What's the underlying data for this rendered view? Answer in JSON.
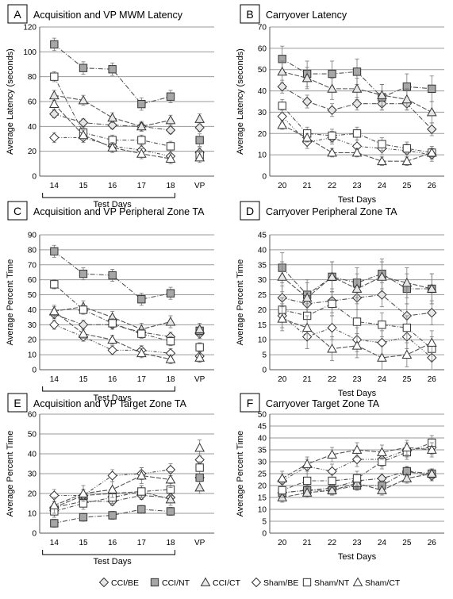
{
  "legend": {
    "items": [
      {
        "name": "CCI/BE",
        "marker": "diamond",
        "fill": "#e6e6e6"
      },
      {
        "name": "CCI/NT",
        "marker": "square",
        "fill": "#a6a6a6"
      },
      {
        "name": "CCI/CT",
        "marker": "triangle",
        "fill": "#e6e6e6"
      },
      {
        "name": "Sham/BE",
        "marker": "diamond",
        "fill": "#ffffff"
      },
      {
        "name": "Sham/NT",
        "marker": "square",
        "fill": "#ffffff"
      },
      {
        "name": "Sham/CT",
        "marker": "triangle",
        "fill": "#ffffff"
      }
    ]
  },
  "chart_data": [
    {
      "panel": "A",
      "type": "line",
      "title": "Acquisition and VP MWM Latency",
      "ylabel": "Average Latency (seconds)",
      "xlabel": "Test Days",
      "categories": [
        "14",
        "15",
        "16",
        "17",
        "18",
        "VP"
      ],
      "ylim": [
        0,
        120
      ],
      "yticks": [
        0,
        20,
        40,
        60,
        80,
        100,
        120
      ],
      "bracket": [
        0,
        4
      ],
      "series": [
        {
          "name": "CCI/BE",
          "values": [
            50,
            43,
            41,
            40,
            37,
            39
          ],
          "err": 3
        },
        {
          "name": "CCI/NT",
          "values": [
            106,
            87,
            86,
            58,
            64,
            29
          ],
          "err": 5
        },
        {
          "name": "CCI/CT",
          "values": [
            65,
            61,
            47,
            40,
            45,
            46
          ],
          "err": 4
        },
        {
          "name": "Sham/BE",
          "values": [
            31,
            31,
            24,
            21,
            16,
            19
          ],
          "err": 4
        },
        {
          "name": "Sham/NT",
          "values": [
            80,
            35,
            29,
            29,
            24,
            17
          ],
          "err": 4
        },
        {
          "name": "Sham/CT",
          "values": [
            58,
            33,
            23,
            18,
            14,
            15
          ],
          "err": 4
        }
      ]
    },
    {
      "panel": "B",
      "type": "line",
      "title": "Carryover Latency",
      "ylabel": "Average Latency (seconds)",
      "xlabel": "Test Days",
      "categories": [
        "20",
        "21",
        "22",
        "23",
        "24",
        "25",
        "26"
      ],
      "ylim": [
        0,
        70
      ],
      "yticks": [
        0,
        10,
        20,
        30,
        40,
        50,
        60,
        70
      ],
      "series": [
        {
          "name": "CCI/BE",
          "values": [
            42,
            35,
            31,
            34,
            34,
            34,
            22
          ],
          "err": 3
        },
        {
          "name": "CCI/NT",
          "values": [
            55,
            48,
            48,
            49,
            37,
            42,
            41
          ],
          "err": 6
        },
        {
          "name": "CCI/CT",
          "values": [
            49,
            46,
            41,
            41,
            38,
            36,
            30
          ],
          "err": 5
        },
        {
          "name": "Sham/BE",
          "values": [
            28,
            16,
            18,
            14,
            13,
            12,
            10
          ],
          "err": 3
        },
        {
          "name": "Sham/NT",
          "values": [
            33,
            20,
            19,
            20,
            15,
            13,
            11
          ],
          "err": 3
        },
        {
          "name": "Sham/CT",
          "values": [
            24,
            18,
            11,
            11,
            7,
            7,
            11
          ],
          "err": 2
        }
      ]
    },
    {
      "panel": "C",
      "type": "line",
      "title": "Acquisition and VP Peripheral Zone TA",
      "ylabel": "Average Percent Time",
      "xlabel": "Test Days",
      "categories": [
        "14",
        "15",
        "16",
        "17",
        "18",
        "VP"
      ],
      "ylim": [
        0,
        90
      ],
      "yticks": [
        0,
        10,
        20,
        30,
        40,
        50,
        60,
        70,
        80,
        90
      ],
      "bracket": [
        0,
        4
      ],
      "series": [
        {
          "name": "CCI/BE",
          "values": [
            37,
            30,
            30,
            25,
            22,
            24
          ],
          "err": 3
        },
        {
          "name": "CCI/NT",
          "values": [
            79,
            64,
            63,
            47,
            51,
            26
          ],
          "err": 4
        },
        {
          "name": "CCI/CT",
          "values": [
            39,
            42,
            35,
            27,
            32,
            27
          ],
          "err": 4
        },
        {
          "name": "Sham/BE",
          "values": [
            30,
            22,
            13,
            13,
            11,
            9
          ],
          "err": 3
        },
        {
          "name": "Sham/NT",
          "values": [
            57,
            40,
            31,
            24,
            19,
            15
          ],
          "err": 3
        },
        {
          "name": "Sham/CT",
          "values": [
            39,
            24,
            20,
            11,
            7,
            8
          ],
          "err": 3
        }
      ]
    },
    {
      "panel": "D",
      "type": "line",
      "title": "Carryover Peripheral Zone TA",
      "ylabel": "Average Percent Time",
      "xlabel": "Test Days",
      "categories": [
        "20",
        "21",
        "22",
        "23",
        "24",
        "25",
        "26"
      ],
      "ylim": [
        0,
        45
      ],
      "yticks": [
        0,
        5,
        10,
        15,
        20,
        25,
        30,
        35,
        40,
        45
      ],
      "series": [
        {
          "name": "CCI/BE",
          "values": [
            24,
            22,
            23,
            24,
            25,
            18,
            19
          ],
          "err": 4
        },
        {
          "name": "CCI/NT",
          "values": [
            34,
            25,
            31,
            29,
            32,
            27,
            27
          ],
          "err": 5
        },
        {
          "name": "CCI/CT",
          "values": [
            31,
            24,
            31,
            27,
            31,
            29,
            27
          ],
          "err": 5
        },
        {
          "name": "Sham/BE",
          "values": [
            18,
            11,
            14,
            10,
            9,
            11,
            4
          ],
          "err": 4
        },
        {
          "name": "Sham/NT",
          "values": [
            20,
            18,
            22,
            16,
            15,
            14,
            7
          ],
          "err": 4
        },
        {
          "name": "Sham/CT",
          "values": [
            17,
            14,
            7,
            8,
            4,
            5,
            9
          ],
          "err": 4
        }
      ]
    },
    {
      "panel": "E",
      "type": "line",
      "title": "Acquisition and VP Target Zone TA",
      "ylabel": "Average Percent Time",
      "xlabel": "Test Days",
      "categories": [
        "14",
        "15",
        "16",
        "17",
        "18",
        "VP"
      ],
      "ylim": [
        0,
        60
      ],
      "yticks": [
        0,
        10,
        20,
        30,
        40,
        50,
        60
      ],
      "bracket": [
        0,
        4
      ],
      "series": [
        {
          "name": "CCI/BE",
          "values": [
            13,
            16,
            16,
            19,
            18,
            28
          ],
          "err": 2
        },
        {
          "name": "CCI/NT",
          "values": [
            5,
            8,
            9,
            12,
            11,
            28
          ],
          "err": 2
        },
        {
          "name": "CCI/CT",
          "values": [
            13,
            19,
            20,
            21,
            17,
            23
          ],
          "err": 3
        },
        {
          "name": "Sham/BE",
          "values": [
            19,
            19,
            29,
            30,
            32,
            37
          ],
          "err": 3
        },
        {
          "name": "Sham/NT",
          "values": [
            11,
            15,
            18,
            21,
            22,
            33
          ],
          "err": 3
        },
        {
          "name": "Sham/CT",
          "values": [
            14,
            20,
            22,
            29,
            27,
            43
          ],
          "err": 4
        }
      ]
    },
    {
      "panel": "F",
      "type": "line",
      "title": "Carryover Target Zone TA",
      "ylabel": "Average Percent Time",
      "xlabel": "Test Days",
      "categories": [
        "20",
        "21",
        "22",
        "23",
        "24",
        "25",
        "26"
      ],
      "ylim": [
        0,
        50
      ],
      "yticks": [
        0,
        5,
        10,
        15,
        20,
        25,
        30,
        35,
        40,
        45,
        50
      ],
      "series": [
        {
          "name": "CCI/BE",
          "values": [
            17,
            18,
            19,
            22,
            23,
            26,
            24
          ],
          "err": 2
        },
        {
          "name": "CCI/NT",
          "values": [
            17,
            18,
            18,
            20,
            20,
            26,
            25
          ],
          "err": 2
        },
        {
          "name": "CCI/CT",
          "values": [
            15,
            17,
            18,
            21,
            18,
            23,
            25
          ],
          "err": 2
        },
        {
          "name": "Sham/BE",
          "values": [
            22,
            28,
            26,
            31,
            31,
            35,
            36
          ],
          "err": 3
        },
        {
          "name": "Sham/NT",
          "values": [
            18,
            22,
            22,
            23,
            30,
            34,
            38
          ],
          "err": 3
        },
        {
          "name": "Sham/CT",
          "values": [
            23,
            29,
            33,
            35,
            34,
            36,
            35
          ],
          "err": 3
        }
      ]
    }
  ]
}
